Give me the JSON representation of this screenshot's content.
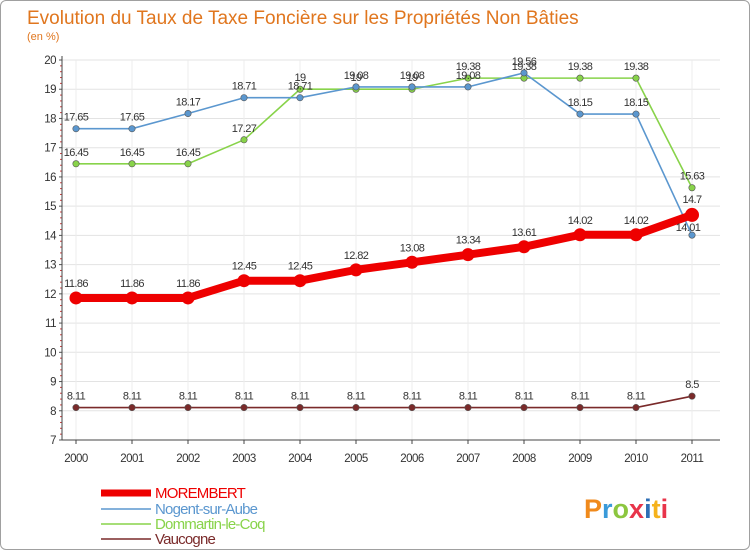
{
  "chart_data": {
    "type": "line",
    "title": "Evolution du Taux de Taxe Foncière sur les Propriétés Non Bâties",
    "subtitle": "(en %)",
    "xlabel": "",
    "ylabel": "",
    "ylim": [
      7,
      20
    ],
    "yticks": [
      "7",
      "8",
      "9",
      "10",
      "11",
      "12",
      "13",
      "14",
      "15",
      "16",
      "17",
      "18",
      "19",
      "20"
    ],
    "categories": [
      "2000",
      "2001",
      "2002",
      "2003",
      "2004",
      "2005",
      "2006",
      "2007",
      "2008",
      "2009",
      "2010",
      "2011"
    ],
    "legend_position": "bottom-left",
    "series": [
      {
        "name": "MOREMBERT",
        "color": "#ee0000",
        "values": [
          11.86,
          11.86,
          11.86,
          12.45,
          12.45,
          12.82,
          13.08,
          13.34,
          13.61,
          14.02,
          14.02,
          14.7
        ],
        "labels": [
          "11.86",
          "11.86",
          "11.86",
          "12.45",
          "12.45",
          "12.82",
          "13.08",
          "13.34",
          "13.61",
          "14.02",
          "14.02",
          "14.7"
        ]
      },
      {
        "name": "Nogent-sur-Aube",
        "color": "#5b97cf",
        "values": [
          17.65,
          17.65,
          18.17,
          18.71,
          18.71,
          19.08,
          19.08,
          19.08,
          19.56,
          18.15,
          18.15,
          14.01
        ],
        "labels": [
          "17.65",
          "17.65",
          "18.17",
          "18.71",
          "18.71",
          "19.08",
          "19.08",
          "19.08",
          "19.56",
          "18.15",
          "18.15",
          "14.01"
        ]
      },
      {
        "name": "Dommartin-le-Coq",
        "color": "#88d34a",
        "values": [
          16.45,
          16.45,
          16.45,
          17.27,
          19,
          19,
          19,
          19.38,
          19.38,
          19.38,
          19.38,
          15.63
        ],
        "labels": [
          "16.45",
          "16.45",
          "16.45",
          "17.27",
          "19",
          "19",
          "19",
          "19.38",
          "19.38",
          "19.38",
          "19.38",
          "15.63"
        ]
      },
      {
        "name": "Vaucogne",
        "color": "#7a2a2a",
        "values": [
          8.11,
          8.11,
          8.11,
          8.11,
          8.11,
          8.11,
          8.11,
          8.11,
          8.11,
          8.11,
          8.11,
          8.5
        ],
        "labels": [
          "8.11",
          "8.11",
          "8.11",
          "8.11",
          "8.11",
          "8.11",
          "8.11",
          "8.11",
          "8.11",
          "8.11",
          "8.11",
          "8.5"
        ]
      }
    ]
  },
  "logo": {
    "text": "Proxiti",
    "letter_colors": [
      "#f08a1c",
      "#3a9ad9",
      "#8cc63f",
      "#e8344a",
      "#2f6fb5",
      "#f5b21c",
      "#e8344a"
    ]
  }
}
